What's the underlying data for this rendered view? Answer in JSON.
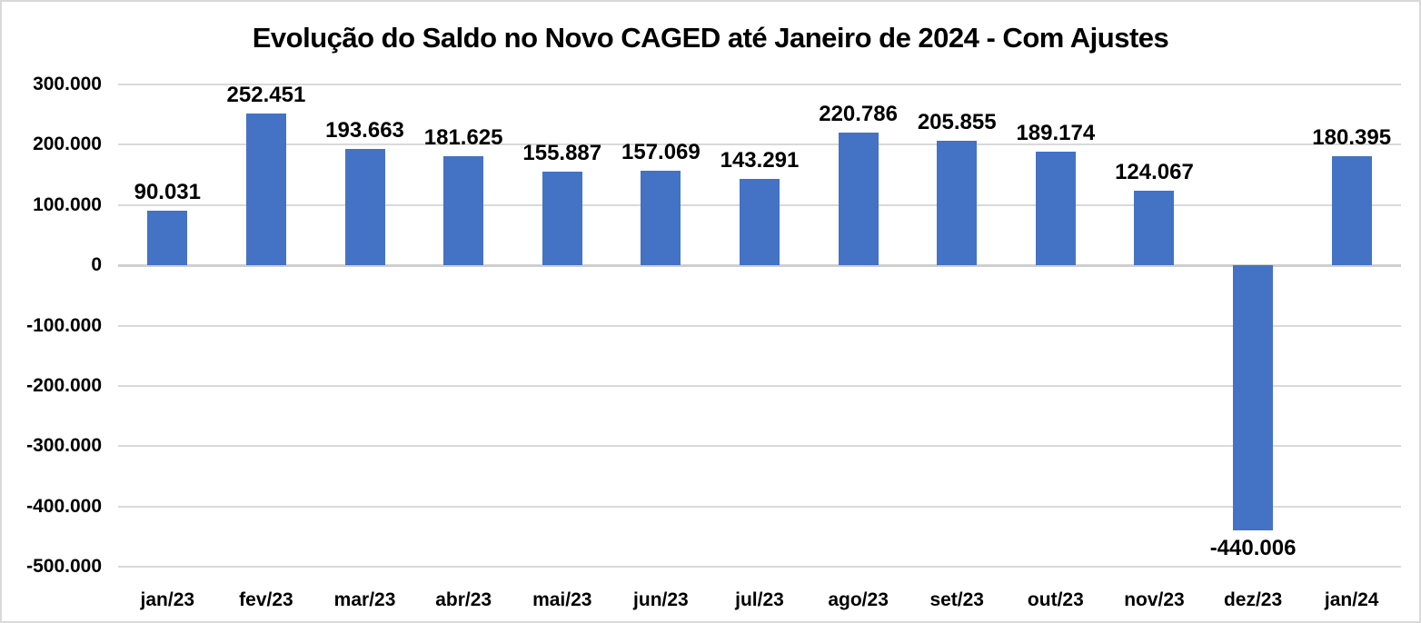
{
  "chart_data": {
    "type": "bar",
    "title": "Evolução do Saldo no Novo CAGED até Janeiro de 2024 - Com Ajustes",
    "categories": [
      "jan/23",
      "fev/23",
      "mar/23",
      "abr/23",
      "mai/23",
      "jun/23",
      "jul/23",
      "ago/23",
      "set/23",
      "out/23",
      "nov/23",
      "dez/23",
      "jan/24"
    ],
    "values": [
      90031,
      252451,
      193663,
      181625,
      155887,
      157069,
      143291,
      220786,
      205855,
      189174,
      124067,
      -440006,
      180395
    ],
    "value_labels": [
      "90.031",
      "252.451",
      "193.663",
      "181.625",
      "155.887",
      "157.069",
      "143.291",
      "220.786",
      "205.855",
      "189.174",
      "124.067",
      "-440.006",
      "180.395"
    ],
    "xlabel": "",
    "ylabel": "",
    "ylim": [
      -500000,
      300000
    ],
    "yticks": [
      300000,
      200000,
      100000,
      0,
      -100000,
      -200000,
      -300000,
      -400000,
      -500000
    ],
    "ytick_labels": [
      "300.000",
      "200.000",
      "100.000",
      "0",
      "-100.000",
      "-200.000",
      "-300.000",
      "-400.000",
      "-500.000"
    ],
    "grid": true,
    "legend": false,
    "bar_color": "#4472c4",
    "gridline_color": "#d9d9d9",
    "axis_line_color": "#cfcfcf",
    "background_color": "#ffffff",
    "border_color": "#d9d9d9",
    "text_color": "#000000"
  }
}
